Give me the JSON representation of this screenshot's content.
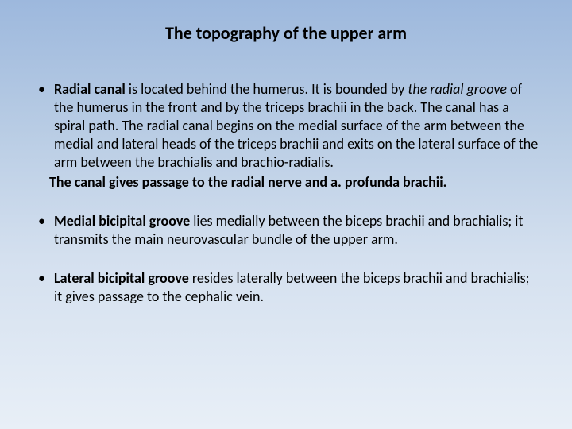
{
  "slide": {
    "title": "The topography of the upper arm",
    "bullets": [
      {
        "lead_bold": "Radial canal",
        "part1": " is located behind the humerus. It is bounded by ",
        "italic1": "the radial groove",
        "part2": " of the humerus in the front and by the triceps brachii in the back. The canal has a spiral path. The radial canal begins on the medial surface of the arm between the medial and lateral heads of the triceps brachii and exits on the lateral surface of the arm between the brachialis and brachio-radialis.",
        "sub_bold": "The canal gives passage to the radial nerve and a. profunda brachii."
      },
      {
        "lead_bold": "Medial bicipital groove",
        "part1": " lies medially between the biceps brachii and brachialis; it transmits the main neurovascular bundle of the upper arm."
      },
      {
        "lead_bold": "Lateral bicipital groove",
        "part1": " resides laterally between the biceps brachii and brachialis; it gives passage to the cephalic vein."
      }
    ]
  },
  "style": {
    "background_gradient": [
      "#9db8dd",
      "#b8cce4",
      "#d4e0ef",
      "#e8eff7"
    ],
    "title_fontsize": 22,
    "body_fontsize": 18,
    "text_color": "#000000",
    "font_family": "Calibri"
  }
}
